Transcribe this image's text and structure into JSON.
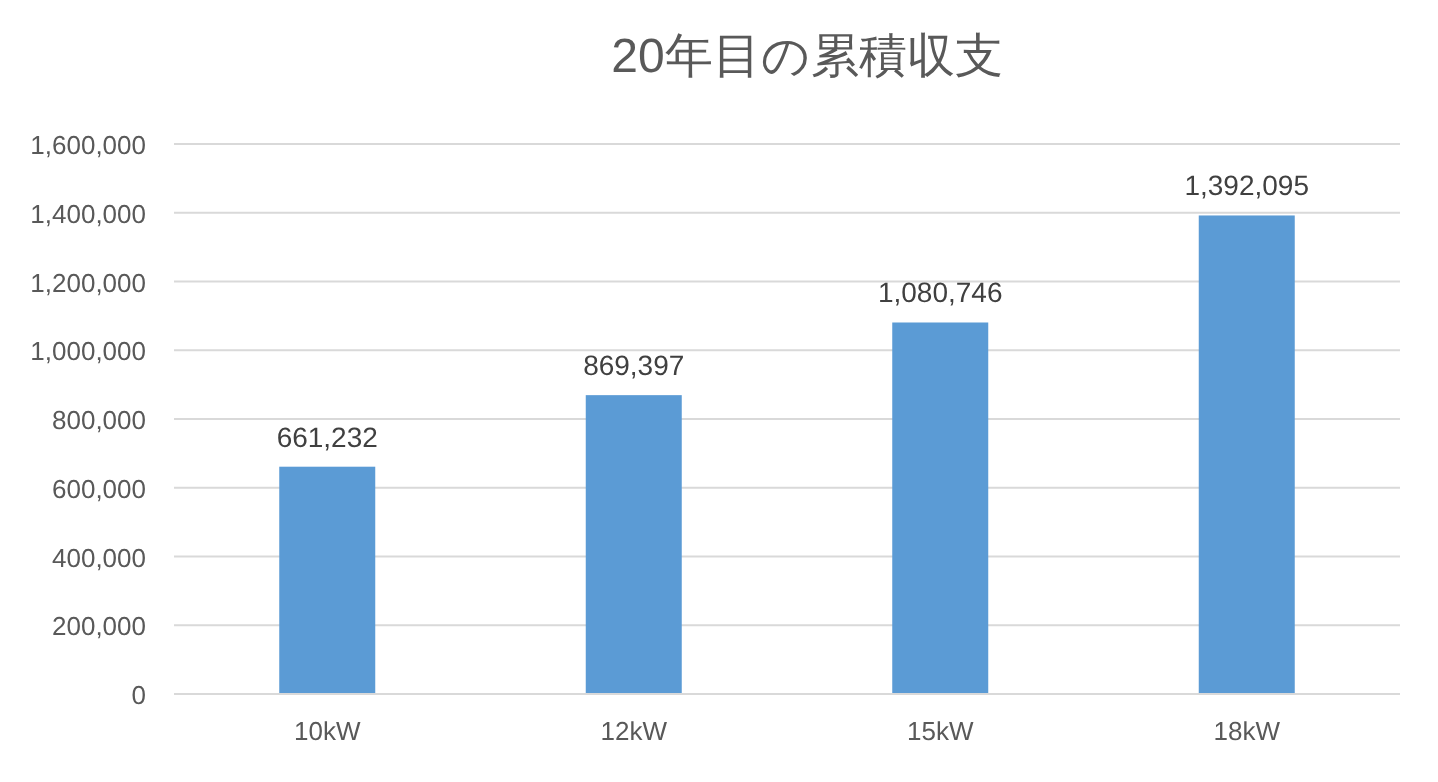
{
  "chart_data": {
    "type": "bar",
    "title": "20年目の累積収支",
    "categories": [
      "10kW",
      "12kW",
      "15kW",
      "18kW"
    ],
    "values": [
      661232,
      869397,
      1080746,
      1392095
    ],
    "color": "#5b9bd5",
    "ylim": [
      0,
      1600000
    ],
    "yticks": [
      {
        "value": 0,
        "label": "0"
      },
      {
        "value": 200000,
        "label": "200,000"
      },
      {
        "value": 400000,
        "label": "400,000"
      },
      {
        "value": 600000,
        "label": "600,000"
      },
      {
        "value": 800000,
        "label": "800,000"
      },
      {
        "value": 1000000,
        "label": "1,000,000"
      },
      {
        "value": 1200000,
        "label": "1,200,000"
      },
      {
        "value": 1400000,
        "label": "1,400,000"
      },
      {
        "value": 1600000,
        "label": "1,600,000"
      }
    ],
    "grid": "y",
    "value_labels": [
      "661,232",
      "869,397",
      "1,080,746",
      "1,392,095"
    ]
  }
}
